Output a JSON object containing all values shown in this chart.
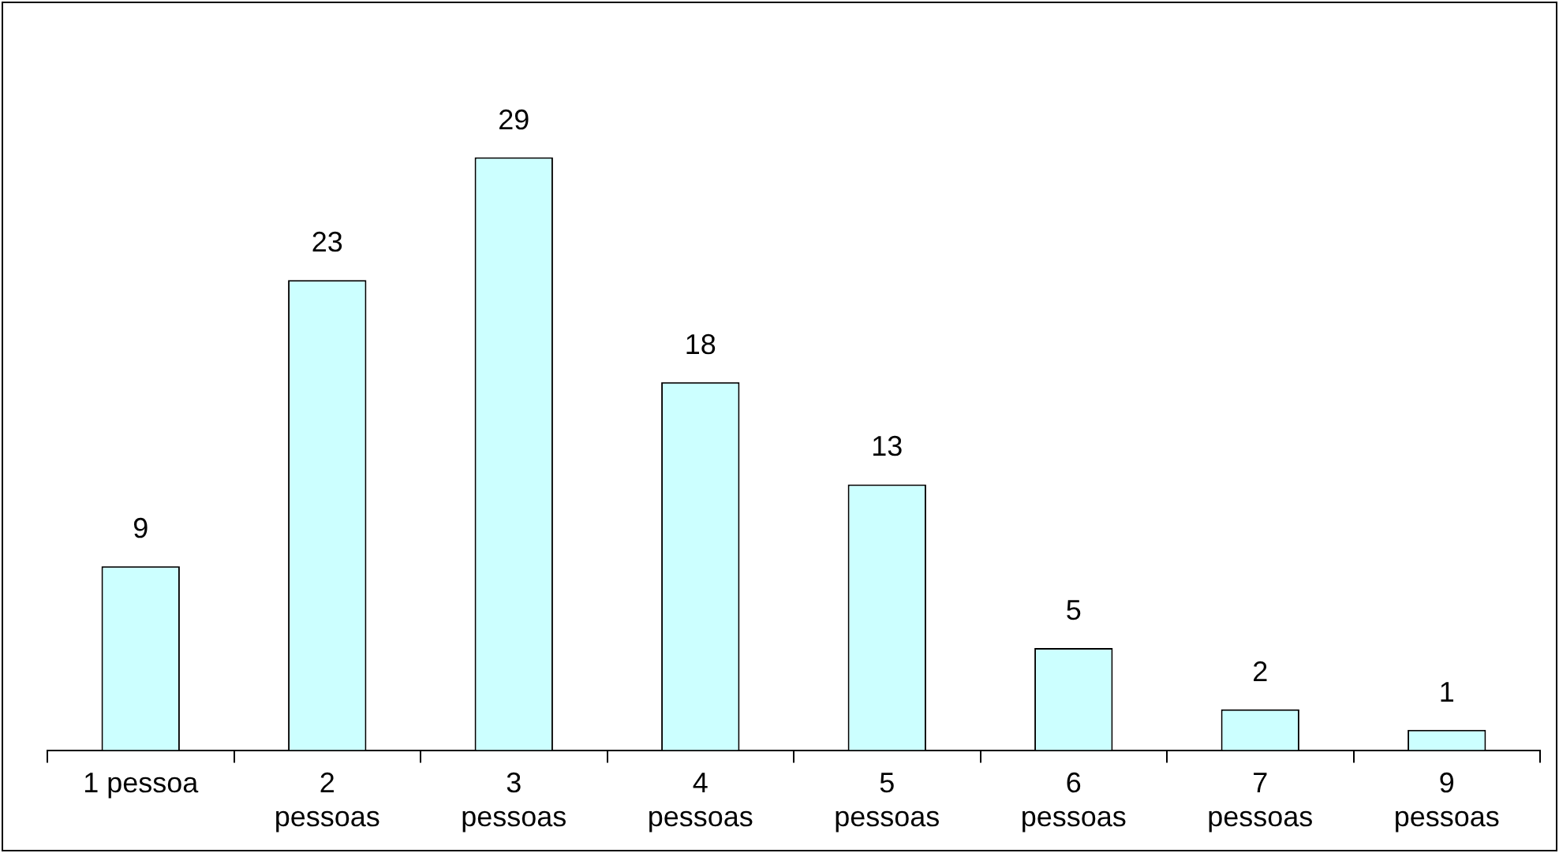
{
  "chart_data": {
    "type": "bar",
    "categories": [
      "1 pessoa",
      "2 pessoas",
      "3 pessoas",
      "4 pessoas",
      "5 pessoas",
      "6 pessoas",
      "7 pessoas",
      "9 pessoas"
    ],
    "values": [
      9,
      23,
      29,
      18,
      13,
      5,
      2,
      1
    ],
    "color": "#ccffff",
    "data_labels": true,
    "grid": false,
    "legend": false
  }
}
